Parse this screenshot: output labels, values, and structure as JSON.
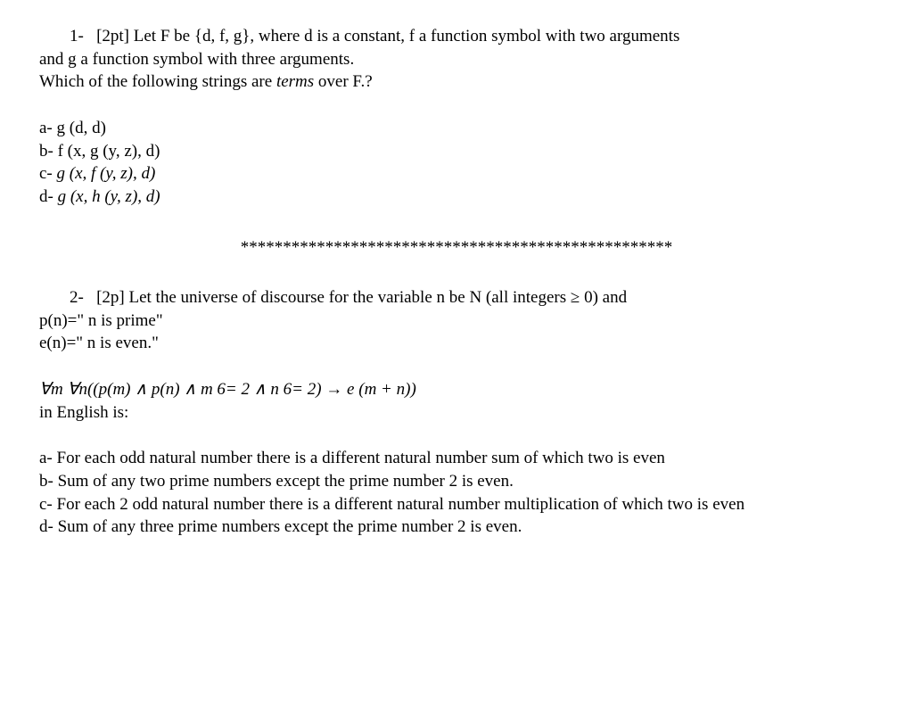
{
  "q1": {
    "number": "1-",
    "points": "[2pt]",
    "intro_l1_part1": "Let F be {d, f, g}, where d is a constant, f a function symbol with two arguments",
    "intro_l2": "and g a function symbol with three arguments.",
    "intro_l3_pre": "Which of the following strings are ",
    "intro_l3_italic": "terms",
    "intro_l3_post": " over F.?",
    "opt_a": "a- g (d, d)",
    "opt_b": "b- f (x, g (y, z), d)",
    "opt_c_pre": "c- ",
    "opt_c_italic": "g (x, f (y, z), d)",
    "opt_d_pre": "d- ",
    "opt_d_italic": "g (x, h (y, z), d)"
  },
  "divider": "***************************************************",
  "q2": {
    "number": "2-",
    "points": "[2p]",
    "intro_l1": "Let the universe of discourse for the variable n be N (all integers ≥ 0) and",
    "intro_l2": "p(n)=\" n is prime\"",
    "intro_l3": "e(n)=\" n is even.\"",
    "formula_italic": "∀m ∀n((p(m) ∧ p(n) ∧ m 6= 2 ∧ n 6= 2) → e (m + n))",
    "formula_l2": "in English is:",
    "opt_a": "a- For each odd natural number there is a different natural number sum of which two is even",
    "opt_b": "b- Sum of any two prime numbers except the prime number 2 is even.",
    "opt_c": "c- For each 2 odd natural number there is a different natural number multiplication of which two is even",
    "opt_d": "d- Sum of any three prime numbers except the prime number 2 is even."
  }
}
